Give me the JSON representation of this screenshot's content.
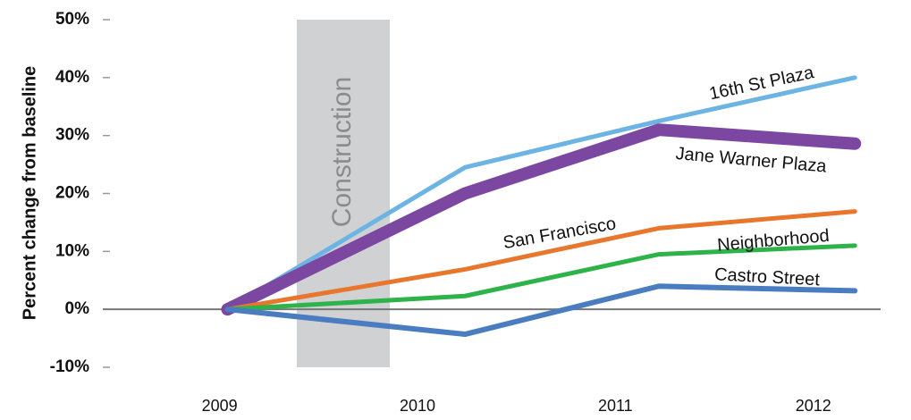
{
  "chart_data": {
    "type": "line",
    "y_label": "Percent change from baseline",
    "xlim": [
      2008.41,
      2012.34
    ],
    "xticks": [
      2009,
      2010,
      2011,
      2012
    ],
    "ylim": [
      -10,
      50
    ],
    "yticks": [
      {
        "value": -10,
        "label": "-10%"
      },
      {
        "value": 0,
        "label": "0%"
      },
      {
        "value": 10,
        "label": "10%"
      },
      {
        "value": 20,
        "label": "20%"
      },
      {
        "value": 30,
        "label": "30%"
      },
      {
        "value": 40,
        "label": "40%"
      },
      {
        "value": 50,
        "label": "50%"
      }
    ],
    "x": [
      2009.04,
      2010.24,
      2011.22,
      2012.21
    ],
    "annotations": [
      {
        "text": "Construction",
        "x": [
          2009.39,
          2009.86
        ],
        "color": "#d0d1d3"
      }
    ],
    "series": [
      {
        "name": "16th St Plaza",
        "color": "#6cb4e4",
        "width": 5,
        "values": [
          0,
          24.5,
          32.5,
          40
        ]
      },
      {
        "name": "Jane Warner Plaza",
        "color": "#7b47a0",
        "width": 14,
        "values": [
          0,
          20,
          31,
          28.6
        ]
      },
      {
        "name": "San Francisco",
        "color": "#e8762c",
        "width": 5,
        "values": [
          0,
          6.9,
          14,
          16.9
        ]
      },
      {
        "name": "Neighborhood",
        "color": "#2db34a",
        "width": 5,
        "values": [
          0,
          2.3,
          9.5,
          11
        ]
      },
      {
        "name": "Castro Street",
        "color": "#4a7cc0",
        "width": 6,
        "values": [
          0,
          -4.3,
          4,
          3.2
        ]
      }
    ]
  }
}
